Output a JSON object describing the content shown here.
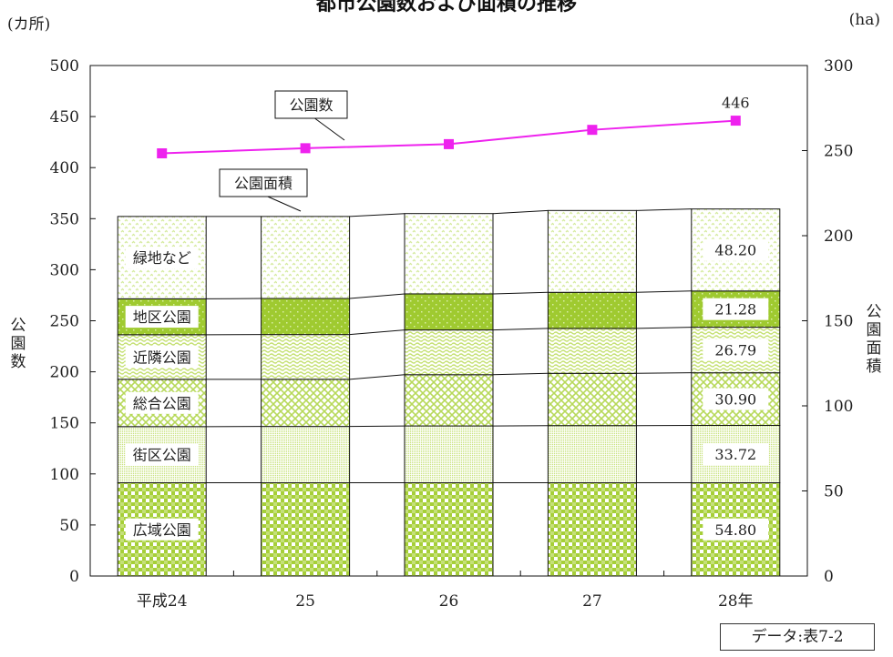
{
  "chart_data": {
    "type": "bar",
    "title": "都市公園数および面積の推移",
    "categories": [
      "平成24",
      "25",
      "26",
      "27",
      "28年"
    ],
    "left_axis": {
      "unit": "(カ所)",
      "label": "公園数",
      "min": 0,
      "max": 500,
      "ticks": [
        "0",
        "50",
        "100",
        "150",
        "200",
        "250",
        "300",
        "350",
        "400",
        "450",
        "500"
      ]
    },
    "right_axis": {
      "unit": "(ha)",
      "label": "公園面積",
      "min": 0,
      "max": 300,
      "ticks": [
        "0",
        "50",
        "100",
        "150",
        "200",
        "250",
        "300"
      ]
    },
    "area_series": [
      {
        "name": "広域公園",
        "values": [
          54.8,
          54.8,
          54.8,
          54.8,
          54.8
        ],
        "color": "#a6cf38"
      },
      {
        "name": "街区公園",
        "values": [
          33.0,
          33.1,
          33.4,
          33.6,
          33.72
        ],
        "color": "#c9e37f"
      },
      {
        "name": "総合公園",
        "values": [
          27.8,
          27.7,
          30.1,
          30.7,
          30.9
        ],
        "color": "#b7d95a"
      },
      {
        "name": "近隣公園",
        "values": [
          26.2,
          26.3,
          26.3,
          26.4,
          26.79
        ],
        "color": "#c4e070"
      },
      {
        "name": "地区公園",
        "values": [
          21.1,
          21.2,
          21.2,
          21.2,
          21.28
        ],
        "color": "#9fca30"
      },
      {
        "name": "緑地など",
        "values": [
          48.4,
          48.2,
          47.2,
          48.1,
          48.2
        ],
        "color": "#d6eba0"
      }
    ],
    "park_count": {
      "name": "公園数",
      "values": [
        414,
        419,
        423,
        437,
        446
      ],
      "color": "#ee22ee"
    },
    "area_annotation_label": "公園面積",
    "last_bar_labels": [
      "54.80",
      "33.72",
      "30.90",
      "26.79",
      "21.28",
      "48.20"
    ],
    "last_point_label": "446",
    "source": "データ:表7-2"
  }
}
